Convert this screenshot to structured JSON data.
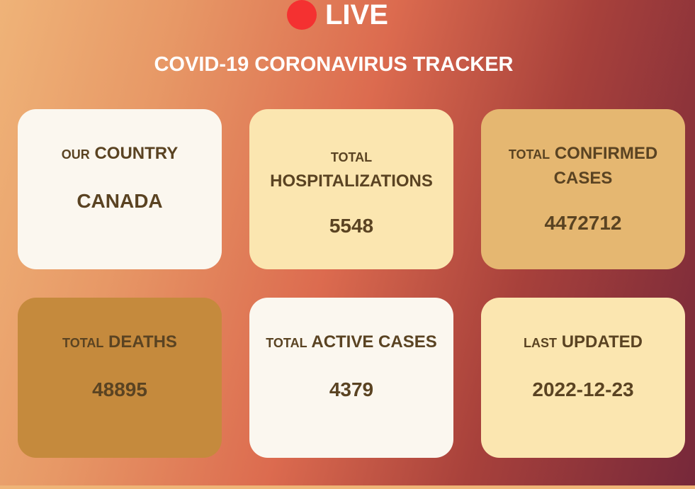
{
  "live": {
    "text": "LIVE",
    "dot_color": "#f43131"
  },
  "title": "COVID-19 CORONAVIRUS TRACKER",
  "cards": {
    "country": {
      "prefix": "OUR",
      "label": "COUNTRY",
      "value": "CANADA",
      "color": "#fbf7ef"
    },
    "hospitalizations": {
      "prefix": "TOTAL",
      "label": "HOSPITALIZATIONS",
      "value": "5548",
      "color": "#fbe6b0"
    },
    "confirmed": {
      "prefix": "TOTAL",
      "label": "CONFIRMED CASES",
      "value": "4472712",
      "color": "#e5b771"
    },
    "deaths": {
      "prefix": "TOTAL",
      "label": "DEATHS",
      "value": "48895",
      "color": "#c58a3d"
    },
    "active": {
      "prefix": "TOTAL",
      "label": "ACTIVE CASES",
      "value": "4379",
      "color": "#fbf7ef"
    },
    "updated": {
      "prefix": "LAST",
      "label": "UPDATED",
      "value": "2022-12-23",
      "color": "#fbe6b0"
    }
  }
}
